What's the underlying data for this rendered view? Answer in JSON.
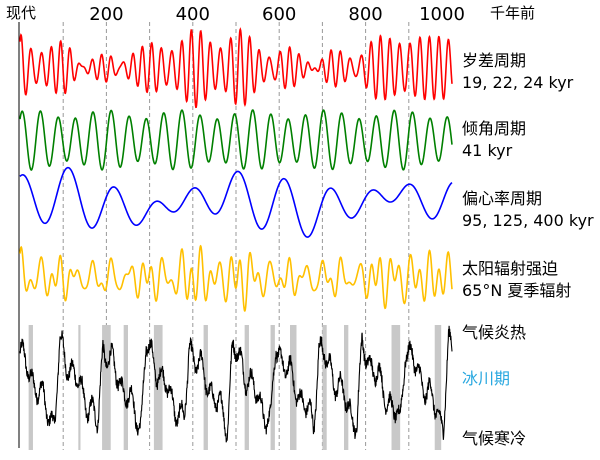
{
  "chart_data": {
    "type": "line",
    "x_axis": {
      "position": "top",
      "start_label": "现代",
      "unit_label": "千年前",
      "ticks": [
        200,
        400,
        600,
        800,
        1000
      ],
      "range": [
        0,
        1000
      ]
    },
    "series": [
      {
        "name": "岁差周期",
        "detail": "19, 22, 24 kyr",
        "color": "#ff0000",
        "periods_kyr": [
          19,
          22,
          24
        ]
      },
      {
        "name": "倾角周期",
        "detail": "41 kyr",
        "color": "#008000",
        "periods_kyr": [
          41
        ]
      },
      {
        "name": "偏心率周期",
        "detail": "95, 125, 400 kyr",
        "color": "#0000ff",
        "periods_kyr": [
          95,
          125,
          400
        ]
      },
      {
        "name": "太阳辐射强迫",
        "detail": "65°N  夏季辐射",
        "color": "#ffc000"
      }
    ],
    "climate_panel": {
      "top_label": "气候炎热",
      "glacial_label": "冰川期",
      "bottom_label": "气候寒冷",
      "line_color": "#000000",
      "glacial_color": "#29a8e0",
      "band_color": "#c8c8c8",
      "glacial_bands_kyr": [
        [
          20,
          30
        ],
        [
          135,
          140
        ],
        [
          190,
          210
        ],
        [
          240,
          250
        ],
        [
          310,
          330
        ],
        [
          425,
          435
        ],
        [
          520,
          530
        ],
        [
          580,
          590
        ],
        [
          625,
          640
        ],
        [
          700,
          710
        ],
        [
          750,
          760
        ],
        [
          860,
          880
        ],
        [
          960,
          975
        ]
      ]
    },
    "grid": "dashed vertical every 100 kyr"
  }
}
